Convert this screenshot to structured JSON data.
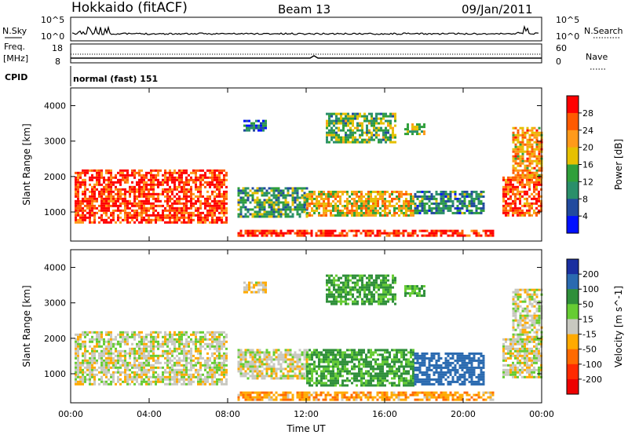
{
  "header": {
    "station": "Hokkaido (fitACF)",
    "beam": "Beam 13",
    "date": "09/Jan/2011"
  },
  "top_strips": {
    "nsky_label": "N.Sky",
    "nsky_ticks": [
      "10^5",
      "10^0"
    ],
    "nsearch_label": "N.Search",
    "freq_label_1": "Freq.",
    "freq_label_2": "[MHz]",
    "freq_ticks": [
      "18",
      "8"
    ],
    "nave_ticks": [
      "60",
      "0"
    ],
    "nave_label": "Nave",
    "cpid_label": "CPID",
    "cpid_value": "normal (fast) 151"
  },
  "chart_data": [
    {
      "type": "heatmap",
      "title": "",
      "xlabel": "",
      "ylabel": "Slant Range [km]",
      "xlim": [
        0,
        24
      ],
      "ylim": [
        180,
        4500
      ],
      "x_ticks": [
        "00:00",
        "04:00",
        "08:00",
        "12:00",
        "16:00",
        "20:00",
        "00:00"
      ],
      "y_ticks": [
        "1000",
        "2000",
        "3000",
        "4000"
      ],
      "y_tick_values": [
        1000,
        2000,
        3000,
        4000
      ],
      "colorbar": {
        "label": "Power [dB]",
        "ticks": [
          "28",
          "24",
          "20",
          "16",
          "12",
          "8",
          "4"
        ],
        "colors": [
          "#ff0000",
          "#ff5a00",
          "#ff9a1a",
          "#e6c000",
          "#2f9f3a",
          "#2a8f6a",
          "#214a9e",
          "#0010ff"
        ]
      },
      "series": [
        {
          "values": [
            [
              0.2,
              8.0,
              700,
              2200,
              28
            ],
            [
              8.5,
              21.5,
              350,
              500,
              30
            ],
            [
              8.5,
              12.0,
              900,
              1700,
              12
            ],
            [
              12.0,
              17.5,
              900,
              1600,
              20
            ],
            [
              17.5,
              21.0,
              1000,
              1600,
              10
            ],
            [
              22.0,
              24.0,
              900,
              2000,
              26
            ],
            [
              22.5,
              24.0,
              2000,
              3400,
              22
            ],
            [
              8.8,
              10.0,
              3300,
              3600,
              8
            ],
            [
              13.0,
              16.5,
              3000,
              3800,
              14
            ],
            [
              17.0,
              18.0,
              3200,
              3500,
              16
            ]
          ]
        }
      ]
    },
    {
      "type": "heatmap",
      "title": "",
      "xlabel": "Time UT",
      "ylabel": "Slant Range [km]",
      "xlim": [
        0,
        24
      ],
      "ylim": [
        180,
        4500
      ],
      "x_ticks": [
        "00:00",
        "04:00",
        "08:00",
        "12:00",
        "16:00",
        "20:00",
        "00:00"
      ],
      "y_ticks": [
        "1000",
        "2000",
        "3000",
        "4000"
      ],
      "y_tick_values": [
        1000,
        2000,
        3000,
        4000
      ],
      "colorbar": {
        "label": "Velocity [m s^-1]",
        "ticks": [
          "200",
          "100",
          "50",
          "15",
          "-15",
          "-50",
          "-100",
          "-200"
        ],
        "colors": [
          "#1a2fa0",
          "#2a6ab0",
          "#2f8f3a",
          "#66cc33",
          "#c8c8c0",
          "#ffaa00",
          "#ff6a00",
          "#ff2a00",
          "#ee0000"
        ]
      },
      "series": [
        {
          "values": [
            [
              0.2,
              8.0,
              700,
              2200,
              0
            ],
            [
              8.5,
              21.5,
              300,
              500,
              -40
            ],
            [
              8.5,
              12.0,
              900,
              1700,
              0
            ],
            [
              12.0,
              17.5,
              700,
              1700,
              60
            ],
            [
              17.5,
              21.0,
              700,
              1600,
              150
            ],
            [
              22.0,
              24.0,
              900,
              2000,
              0
            ],
            [
              22.5,
              24.0,
              2000,
              3400,
              0
            ],
            [
              8.8,
              10.0,
              3300,
              3600,
              -10
            ],
            [
              13.0,
              16.5,
              3000,
              3800,
              60
            ],
            [
              17.0,
              18.0,
              3200,
              3500,
              50
            ]
          ]
        }
      ]
    }
  ]
}
